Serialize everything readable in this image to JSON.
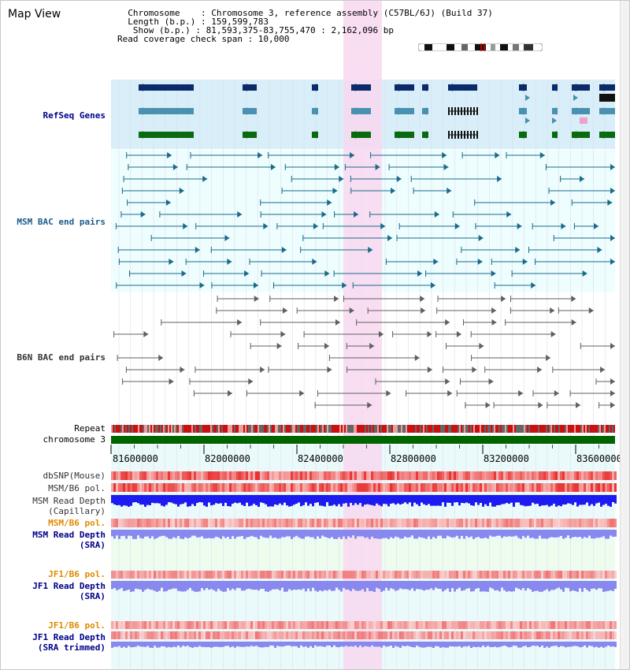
{
  "header": {
    "title": "Map View",
    "info_lines": [
      "  Chromosome    : Chromosome 3, reference assembly (C57BL/6J) (Build 37)",
      "  Length (b.p.) : 159,599,783",
      "   Show (b.p.) : 81,593,375-83,755,470 : 2,162,096 bp",
      "Read coverage check span : 10,000"
    ]
  },
  "tracks": {
    "refseq": "RefSeq Genes",
    "msm_bac": "MSM BAC end pairs",
    "b6n_bac": "B6N BAC end pairs",
    "repeat": "Repeat",
    "chromosome": "chromosome 3",
    "dbsnp": "dbSNP(Mouse)",
    "msm_pol1": "MSM/B6 pol.",
    "msm_depth_cap_1": "MSM Read Depth",
    "msm_depth_cap_2": "(Capillary)",
    "msm_pol2": "MSM/B6 pol.",
    "msm_depth_sra_1": "MSM Read Depth",
    "msm_depth_sra_2": "(SRA)",
    "jf1_pol1": "JF1/B6 pol.",
    "jf1_depth_sra_1": "JF1 Read Depth",
    "jf1_depth_sra_2": "(SRA)",
    "jf1_pol2": "JF1/B6 pol.",
    "jf1_depth_trim_1": "JF1 Read Depth",
    "jf1_depth_trim_2": "(SRA trimmed)"
  },
  "axis": {
    "ticks": [
      "81600000",
      "82000000",
      "82400000",
      "82800000",
      "83200000",
      "83600000"
    ]
  },
  "colors": {
    "highlight": "#f8d8f0",
    "refseq_bg": "#d8eef8",
    "bac_bg": "#eefdfd",
    "gene_navy": "#0a2a6a",
    "gene_teal": "#4a90b0",
    "gene_green": "#0a6a10",
    "msm_bac": "#1a6a8a",
    "b6n_bac": "#606060",
    "depth_blue": "#1c1cf0",
    "depth_light": "#8888ee",
    "chrom_green": "#006400"
  }
}
